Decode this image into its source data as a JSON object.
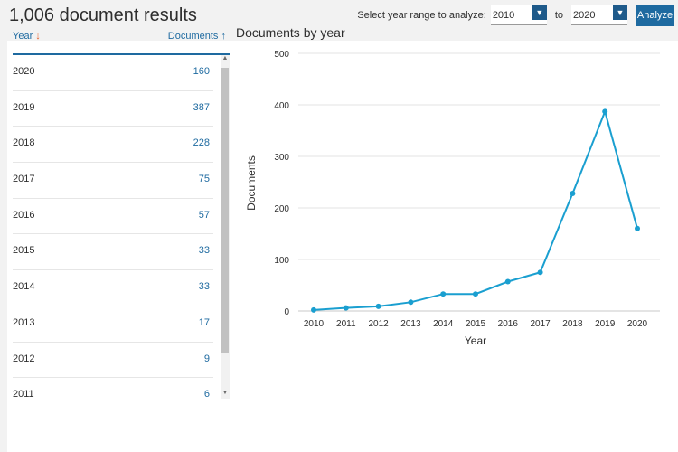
{
  "header": {
    "title": "1,006 document results",
    "range_label": "Select year range to analyze:",
    "from_year": "2010",
    "to_label": "to",
    "to_year": "2020",
    "analyze_label": "Analyze"
  },
  "table": {
    "col_year": "Year",
    "col_docs": "Documents",
    "rows": [
      {
        "year": "2020",
        "count": "160"
      },
      {
        "year": "2019",
        "count": "387"
      },
      {
        "year": "2018",
        "count": "228"
      },
      {
        "year": "2017",
        "count": "75"
      },
      {
        "year": "2016",
        "count": "57"
      },
      {
        "year": "2015",
        "count": "33"
      },
      {
        "year": "2014",
        "count": "33"
      },
      {
        "year": "2013",
        "count": "17"
      },
      {
        "year": "2012",
        "count": "9"
      },
      {
        "year": "2011",
        "count": "6"
      }
    ]
  },
  "chart_title": "Documents by year",
  "colors": {
    "accent": "#1e6aa0",
    "line": "#1a9fd0",
    "sort_arrow": "#e8602c"
  },
  "chart_data": {
    "type": "line",
    "title": "Documents by year",
    "xlabel": "Year",
    "ylabel": "Documents",
    "x": [
      "2010",
      "2011",
      "2012",
      "2013",
      "2014",
      "2015",
      "2016",
      "2017",
      "2018",
      "2019",
      "2020"
    ],
    "series": [
      {
        "values": [
          2,
          6,
          9,
          17,
          33,
          33,
          57,
          75,
          228,
          387,
          160
        ]
      }
    ],
    "ylim": [
      0,
      500
    ],
    "yticks": [
      0,
      100,
      200,
      300,
      400,
      500
    ],
    "grid": true
  }
}
